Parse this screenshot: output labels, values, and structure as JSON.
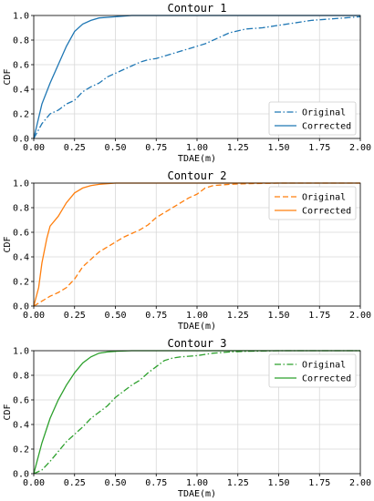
{
  "chart_data": [
    {
      "type": "line",
      "title": "Contour 1",
      "xlabel": "TDAE(m)",
      "ylabel": "CDF",
      "xlim": [
        0,
        2
      ],
      "ylim": [
        0,
        1
      ],
      "xticks": [
        "0.00",
        "0.25",
        "0.50",
        "0.75",
        "1.00",
        "1.25",
        "1.50",
        "1.75",
        "2.00"
      ],
      "yticks": [
        "0.0",
        "0.2",
        "0.4",
        "0.6",
        "0.8",
        "1.0"
      ],
      "grid": true,
      "legend_position": "lower-right",
      "series": [
        {
          "name": "Original",
          "style": "dashdot",
          "color": "#1f77b4",
          "x": [
            0.0,
            0.05,
            0.1,
            0.15,
            0.2,
            0.25,
            0.3,
            0.35,
            0.4,
            0.45,
            0.5,
            0.55,
            0.6,
            0.65,
            0.7,
            0.75,
            0.8,
            0.85,
            0.9,
            0.95,
            1.0,
            1.05,
            1.1,
            1.15,
            1.2,
            1.3,
            1.4,
            1.5,
            1.6,
            1.7,
            1.8,
            1.9,
            2.0
          ],
          "y": [
            0.0,
            0.12,
            0.2,
            0.23,
            0.28,
            0.31,
            0.38,
            0.42,
            0.45,
            0.5,
            0.53,
            0.56,
            0.59,
            0.62,
            0.64,
            0.65,
            0.67,
            0.69,
            0.71,
            0.73,
            0.75,
            0.77,
            0.8,
            0.83,
            0.86,
            0.89,
            0.9,
            0.92,
            0.94,
            0.96,
            0.97,
            0.98,
            0.99
          ]
        },
        {
          "name": "Corrected",
          "style": "solid",
          "color": "#1f77b4",
          "x": [
            0.0,
            0.05,
            0.1,
            0.15,
            0.2,
            0.25,
            0.3,
            0.35,
            0.4,
            0.5,
            0.6,
            0.7,
            0.8,
            1.0,
            2.0
          ],
          "y": [
            0.0,
            0.28,
            0.45,
            0.6,
            0.75,
            0.87,
            0.93,
            0.96,
            0.98,
            0.99,
            1.0,
            1.0,
            1.0,
            1.0,
            1.0
          ]
        }
      ]
    },
    {
      "type": "line",
      "title": "Contour 2",
      "xlabel": "TDAE(m)",
      "ylabel": "CDF",
      "xlim": [
        0,
        2
      ],
      "ylim": [
        0,
        1
      ],
      "xticks": [
        "0.00",
        "0.25",
        "0.50",
        "0.75",
        "1.00",
        "1.25",
        "1.50",
        "1.75",
        "2.00"
      ],
      "yticks": [
        "0.0",
        "0.2",
        "0.4",
        "0.6",
        "0.8",
        "1.0"
      ],
      "grid": true,
      "legend_position": "top-right",
      "series": [
        {
          "name": "Original",
          "style": "dashed",
          "color": "#ff7f0e",
          "x": [
            0.0,
            0.05,
            0.1,
            0.15,
            0.2,
            0.25,
            0.3,
            0.35,
            0.4,
            0.45,
            0.5,
            0.55,
            0.6,
            0.65,
            0.7,
            0.75,
            0.8,
            0.85,
            0.9,
            0.95,
            1.0,
            1.05,
            1.1,
            1.2,
            1.3,
            1.5,
            2.0
          ],
          "y": [
            0.0,
            0.04,
            0.08,
            0.11,
            0.15,
            0.22,
            0.32,
            0.38,
            0.44,
            0.48,
            0.52,
            0.56,
            0.59,
            0.62,
            0.66,
            0.72,
            0.76,
            0.8,
            0.84,
            0.88,
            0.91,
            0.96,
            0.98,
            0.99,
            0.995,
            1.0,
            1.0
          ]
        },
        {
          "name": "Corrected",
          "style": "solid",
          "color": "#ff7f0e",
          "x": [
            0.0,
            0.03,
            0.05,
            0.08,
            0.1,
            0.15,
            0.2,
            0.25,
            0.3,
            0.35,
            0.4,
            0.5,
            0.6,
            2.0
          ],
          "y": [
            0.0,
            0.15,
            0.35,
            0.55,
            0.65,
            0.73,
            0.84,
            0.92,
            0.96,
            0.98,
            0.99,
            1.0,
            1.0,
            1.0
          ]
        }
      ]
    },
    {
      "type": "line",
      "title": "Contour 3",
      "xlabel": "TDAE(m)",
      "ylabel": "CDF",
      "xlim": [
        0,
        2
      ],
      "ylim": [
        0,
        1
      ],
      "xticks": [
        "0.00",
        "0.25",
        "0.50",
        "0.75",
        "1.00",
        "1.25",
        "1.50",
        "1.75",
        "2.00"
      ],
      "yticks": [
        "0.0",
        "0.2",
        "0.4",
        "0.6",
        "0.8",
        "1.0"
      ],
      "grid": true,
      "legend_position": "top-right",
      "series": [
        {
          "name": "Original",
          "style": "dashdot",
          "color": "#2ca02c",
          "x": [
            0.0,
            0.05,
            0.1,
            0.15,
            0.2,
            0.25,
            0.3,
            0.35,
            0.4,
            0.45,
            0.5,
            0.55,
            0.6,
            0.65,
            0.7,
            0.75,
            0.8,
            0.85,
            0.9,
            1.0,
            1.1,
            1.2,
            1.3,
            1.5,
            2.0
          ],
          "y": [
            0.0,
            0.03,
            0.1,
            0.18,
            0.26,
            0.32,
            0.38,
            0.45,
            0.5,
            0.55,
            0.62,
            0.67,
            0.72,
            0.76,
            0.82,
            0.87,
            0.92,
            0.94,
            0.95,
            0.96,
            0.98,
            0.99,
            0.995,
            1.0,
            1.0
          ]
        },
        {
          "name": "Corrected",
          "style": "solid",
          "color": "#2ca02c",
          "x": [
            0.0,
            0.05,
            0.1,
            0.15,
            0.2,
            0.25,
            0.3,
            0.35,
            0.4,
            0.45,
            0.5,
            0.6,
            2.0
          ],
          "y": [
            0.0,
            0.25,
            0.45,
            0.6,
            0.72,
            0.82,
            0.9,
            0.95,
            0.98,
            0.99,
            0.995,
            1.0,
            1.0
          ]
        }
      ]
    }
  ]
}
